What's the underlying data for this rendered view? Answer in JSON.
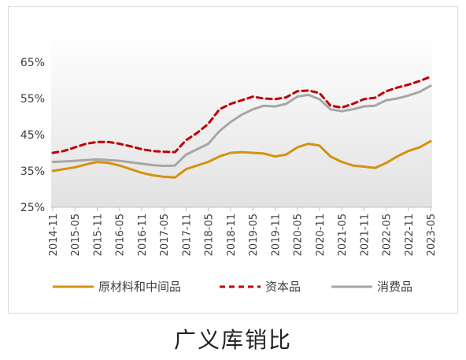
{
  "chart_data": {
    "type": "line",
    "title": "",
    "xlabel": "",
    "ylabel": "",
    "ylim": [
      0.25,
      0.7
    ],
    "yticks": [
      "65%",
      "55%",
      "45%",
      "35%",
      "25%"
    ],
    "ytick_values": [
      0.65,
      0.55,
      0.45,
      0.35,
      0.25
    ],
    "xticks": [
      "2014-11",
      "2015-05",
      "2015-11",
      "2016-05",
      "2016-11",
      "2017-05",
      "2017-11",
      "2018-05",
      "2018-11",
      "2019-05",
      "2019-11",
      "2020-05",
      "2020-11",
      "2021-05",
      "2021-11",
      "2022-05",
      "2022-11",
      "2023-05"
    ],
    "x": [
      "2014-11",
      "2015-02",
      "2015-05",
      "2015-08",
      "2015-11",
      "2016-02",
      "2016-05",
      "2016-08",
      "2016-11",
      "2017-02",
      "2017-05",
      "2017-08",
      "2017-11",
      "2018-02",
      "2018-05",
      "2018-08",
      "2018-11",
      "2019-02",
      "2019-05",
      "2019-08",
      "2019-11",
      "2020-02",
      "2020-05",
      "2020-08",
      "2020-11",
      "2021-02",
      "2021-05",
      "2021-08",
      "2021-11",
      "2022-02",
      "2022-05",
      "2022-08",
      "2022-11",
      "2023-02",
      "2023-05"
    ],
    "series": [
      {
        "name": "原材料和中间品",
        "color": "#d4920f",
        "style": "solid",
        "values": [
          0.35,
          0.355,
          0.36,
          0.368,
          0.375,
          0.372,
          0.365,
          0.355,
          0.345,
          0.338,
          0.334,
          0.332,
          0.355,
          0.365,
          0.375,
          0.39,
          0.4,
          0.402,
          0.4,
          0.398,
          0.39,
          0.395,
          0.415,
          0.425,
          0.42,
          0.39,
          0.375,
          0.365,
          0.362,
          0.358,
          0.372,
          0.39,
          0.405,
          0.415,
          0.432
        ]
      },
      {
        "name": "资本品",
        "color": "#c00000",
        "style": "dashed",
        "values": [
          0.4,
          0.405,
          0.415,
          0.425,
          0.43,
          0.43,
          0.425,
          0.418,
          0.41,
          0.405,
          0.403,
          0.402,
          0.435,
          0.455,
          0.48,
          0.52,
          0.535,
          0.545,
          0.555,
          0.55,
          0.548,
          0.553,
          0.57,
          0.572,
          0.565,
          0.53,
          0.525,
          0.535,
          0.548,
          0.552,
          0.57,
          0.58,
          0.588,
          0.598,
          0.61
        ]
      },
      {
        "name": "消费品",
        "color": "#a6a6a6",
        "style": "solid",
        "values": [
          0.375,
          0.376,
          0.378,
          0.38,
          0.382,
          0.38,
          0.378,
          0.374,
          0.37,
          0.366,
          0.364,
          0.365,
          0.395,
          0.41,
          0.425,
          0.46,
          0.485,
          0.505,
          0.52,
          0.53,
          0.528,
          0.535,
          0.555,
          0.56,
          0.548,
          0.52,
          0.515,
          0.52,
          0.528,
          0.53,
          0.545,
          0.55,
          0.558,
          0.568,
          0.585
        ]
      }
    ],
    "legend_position": "bottom",
    "grid": false,
    "plot_background": "gradient-gray"
  },
  "caption": "广义库销比"
}
